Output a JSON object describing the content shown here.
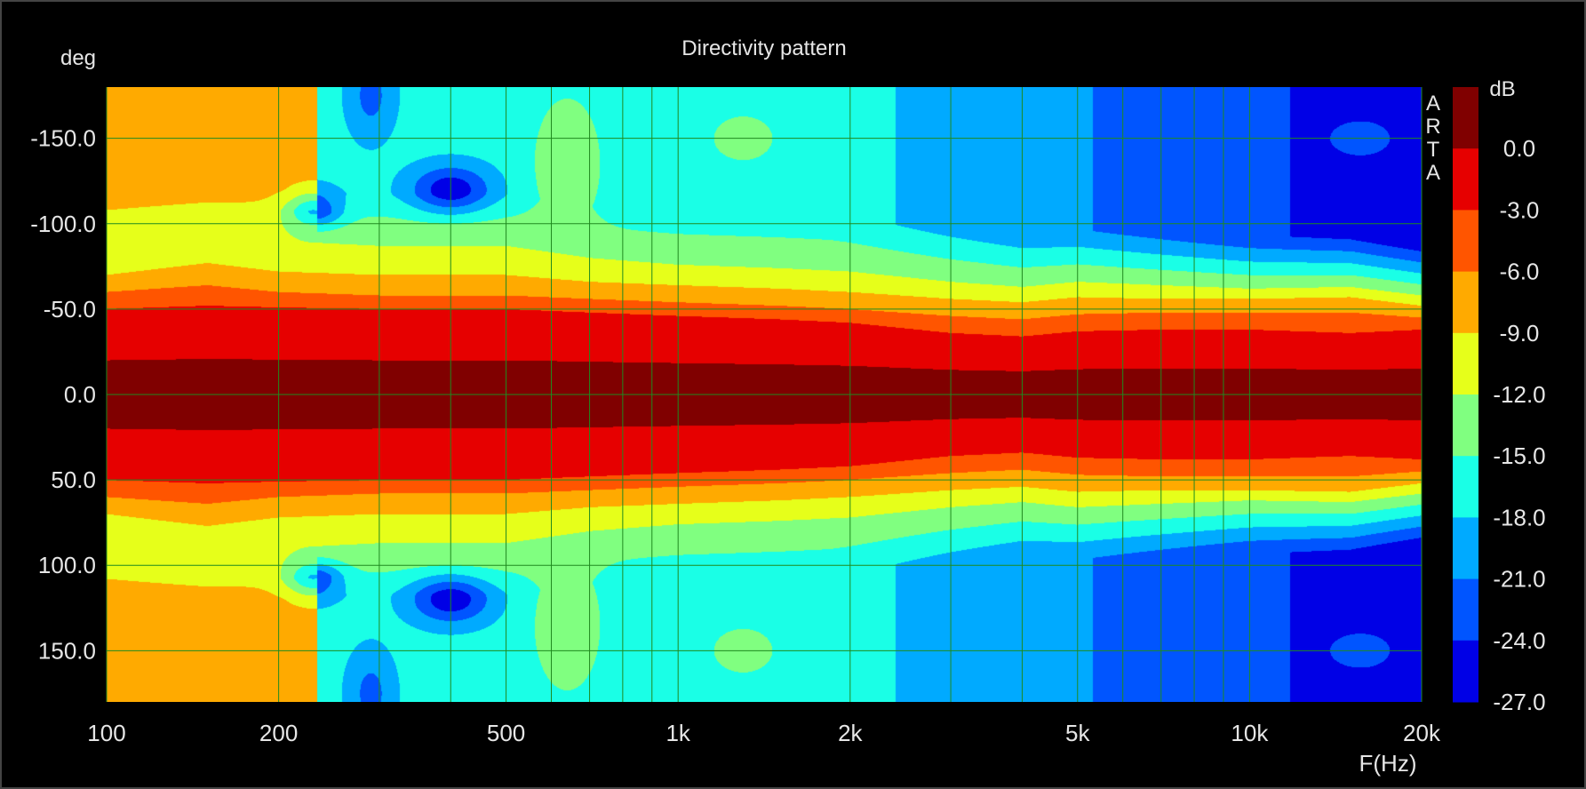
{
  "chart_data": {
    "type": "heatmap",
    "title": "Directivity pattern",
    "xlabel": "F(Hz)",
    "ylabel": "deg",
    "x_scale": "log",
    "xlim": [
      100,
      20000
    ],
    "ylim": [
      -180,
      180
    ],
    "x_ticks": [
      {
        "value": 100,
        "label": "100"
      },
      {
        "value": 200,
        "label": "200"
      },
      {
        "value": 500,
        "label": "500"
      },
      {
        "value": 1000,
        "label": "1k"
      },
      {
        "value": 2000,
        "label": "2k"
      },
      {
        "value": 5000,
        "label": "5k"
      },
      {
        "value": 10000,
        "label": "10k"
      },
      {
        "value": 20000,
        "label": "20k"
      }
    ],
    "y_ticks": [
      {
        "value": -150,
        "label": "-150.0"
      },
      {
        "value": -100,
        "label": "-100.0"
      },
      {
        "value": -50,
        "label": "-50.0"
      },
      {
        "value": 0,
        "label": "0.0"
      },
      {
        "value": 50,
        "label": "50.0"
      },
      {
        "value": 100,
        "label": "100.0"
      },
      {
        "value": 150,
        "label": "150.0"
      }
    ],
    "grid": true,
    "watermark": "ARTA",
    "colorbar": {
      "unit": "dB",
      "min": -27,
      "max": 3,
      "labels": [
        "0.0",
        "-3.0",
        "-6.0",
        "-9.0",
        "-12.0",
        "-15.0",
        "-18.0",
        "-21.0",
        "-24.0",
        "-27.0"
      ],
      "levels": [
        {
          "max": 3,
          "min": 0,
          "color": "#800000"
        },
        {
          "max": 0,
          "min": -3,
          "color": "#e60000"
        },
        {
          "max": -3,
          "min": -6,
          "color": "#ff5500"
        },
        {
          "max": -6,
          "min": -9,
          "color": "#ffaa00"
        },
        {
          "max": -9,
          "min": -12,
          "color": "#e6ff1a"
        },
        {
          "max": -12,
          "min": -15,
          "color": "#80ff80"
        },
        {
          "max": -15,
          "min": -18,
          "color": "#1affe6"
        },
        {
          "max": -18,
          "min": -21,
          "color": "#00aaff"
        },
        {
          "max": -21,
          "min": -24,
          "color": "#0055ff"
        },
        {
          "max": -24,
          "min": -27,
          "color": "#0000e6"
        }
      ],
      "below_min_color": "#000080"
    },
    "beamwidth_deg": {
      "freq_hz": [
        100,
        150,
        200,
        300,
        500,
        700,
        1000,
        1500,
        2000,
        3000,
        4000,
        5000,
        7000,
        10000,
        15000,
        20000
      ],
      "minus3dB": [
        50,
        52,
        51,
        50,
        50,
        48,
        46,
        44,
        42,
        36,
        34,
        37,
        38,
        38,
        36,
        38
      ],
      "minus6dB": [
        60,
        64,
        60,
        58,
        58,
        56,
        54,
        52,
        50,
        46,
        44,
        47,
        48,
        48,
        48,
        45
      ],
      "minus9dB": [
        70,
        77,
        72,
        70,
        70,
        66,
        64,
        62,
        60,
        56,
        54,
        57,
        56,
        56,
        57,
        52
      ],
      "minus12dB": [
        86,
        90,
        90,
        87,
        87,
        80,
        76,
        74,
        72,
        66,
        63,
        66,
        64,
        62,
        63,
        58
      ]
    },
    "features_db": {
      "dip_230hz_105deg": -27,
      "dip_400hz_120deg": -27,
      "bump_640hz_135deg": -13,
      "bump_16khz_150deg": -24
    }
  }
}
